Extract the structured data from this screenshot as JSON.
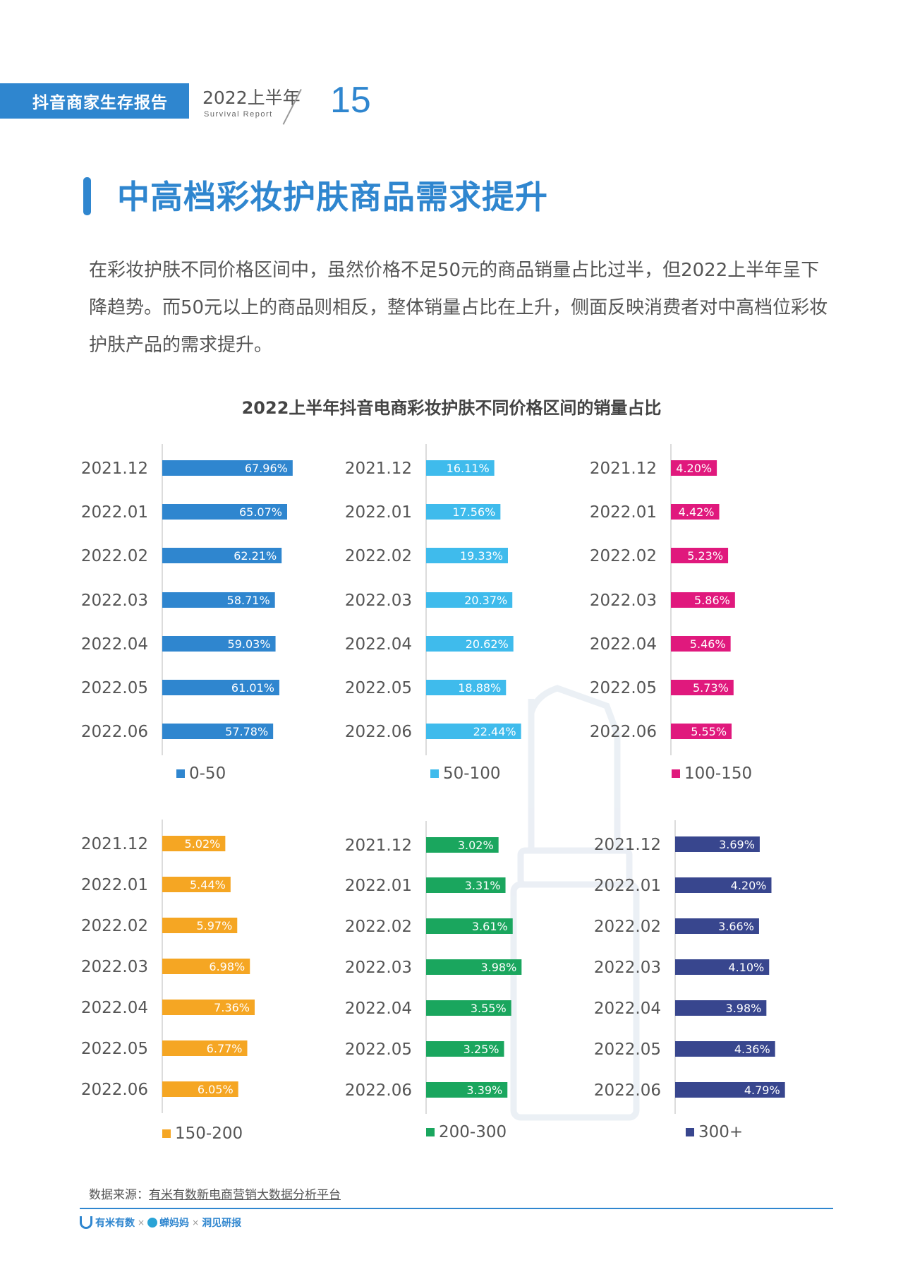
{
  "header": {
    "tab_label": "抖音商家生存报告",
    "year_label": "2022上半年",
    "sub_label": "Survival Report",
    "page_number": "15"
  },
  "page_title": "中高档彩妆护肤商品需求提升",
  "intro_text": "在彩妆护肤不同价格区间中，虽然价格不足50元的商品销量占比过半，但2022上半年呈下降趋势。而50元以上的商品则相反，整体销量占比在上升，侧面反映消费者对中高档位彩妆护肤产品的需求提升。",
  "chart_title": "2022上半年抖音电商彩妆护肤不同价格区间的销量占比",
  "chart_data": [
    {
      "type": "bar",
      "orientation": "horizontal",
      "series_name": "0-50",
      "color": "#2f86cf",
      "categories": [
        "2021.12",
        "2022.01",
        "2022.02",
        "2022.03",
        "2022.04",
        "2022.05",
        "2022.06"
      ],
      "values": [
        67.96,
        65.07,
        62.21,
        58.71,
        59.03,
        61.01,
        57.78
      ],
      "labels": [
        "67.96%",
        "65.07%",
        "62.21%",
        "58.71%",
        "59.03%",
        "61.01%",
        "57.78%"
      ]
    },
    {
      "type": "bar",
      "orientation": "horizontal",
      "series_name": "50-100",
      "color": "#3fbbec",
      "categories": [
        "2021.12",
        "2022.01",
        "2022.02",
        "2022.03",
        "2022.04",
        "2022.05",
        "2022.06"
      ],
      "values": [
        16.11,
        17.56,
        19.33,
        20.37,
        20.62,
        18.88,
        22.44
      ],
      "labels": [
        "16.11%",
        "17.56%",
        "19.33%",
        "20.37%",
        "20.62%",
        "18.88%",
        "22.44%"
      ]
    },
    {
      "type": "bar",
      "orientation": "horizontal",
      "series_name": "100-150",
      "color": "#e0197d",
      "categories": [
        "2021.12",
        "2022.01",
        "2022.02",
        "2022.03",
        "2022.04",
        "2022.05",
        "2022.06"
      ],
      "values": [
        4.2,
        4.42,
        5.23,
        5.86,
        5.46,
        5.73,
        5.55
      ],
      "labels": [
        "4.20%",
        "4.42%",
        "5.23%",
        "5.86%",
        "5.46%",
        "5.73%",
        "5.55%"
      ]
    },
    {
      "type": "bar",
      "orientation": "horizontal",
      "series_name": "150-200",
      "color": "#f5a623",
      "categories": [
        "2021.12",
        "2022.01",
        "2022.02",
        "2022.03",
        "2022.04",
        "2022.05",
        "2022.06"
      ],
      "values": [
        5.02,
        5.44,
        5.97,
        6.98,
        7.36,
        6.77,
        6.05
      ],
      "labels": [
        "5.02%",
        "5.44%",
        "5.97%",
        "6.98%",
        "7.36%",
        "6.77%",
        "6.05%"
      ]
    },
    {
      "type": "bar",
      "orientation": "horizontal",
      "series_name": "200-300",
      "color": "#1aa65e",
      "categories": [
        "2021.12",
        "2022.01",
        "2022.02",
        "2022.03",
        "2022.04",
        "2022.05",
        "2022.06"
      ],
      "values": [
        3.02,
        3.31,
        3.61,
        3.98,
        3.55,
        3.25,
        3.39
      ],
      "labels": [
        "3.02%",
        "3.31%",
        "3.61%",
        "3.98%",
        "3.55%",
        "3.25%",
        "3.39%"
      ]
    },
    {
      "type": "bar",
      "orientation": "horizontal",
      "series_name": "300+",
      "color": "#38468e",
      "categories": [
        "2021.12",
        "2022.01",
        "2022.02",
        "2022.03",
        "2022.04",
        "2022.05",
        "2022.06"
      ],
      "values": [
        3.69,
        4.2,
        3.66,
        4.1,
        3.98,
        4.36,
        4.79
      ],
      "labels": [
        "3.69%",
        "4.20%",
        "3.66%",
        "4.10%",
        "3.98%",
        "4.36%",
        "4.79%"
      ]
    }
  ],
  "source": {
    "prefix": "数据来源：",
    "name": "有米有数新电商营销大数据分析平台"
  },
  "footer": {
    "logo1": "有米有数",
    "logo2": "蝉妈妈",
    "logo3": "洞见研报",
    "separator": "×"
  }
}
